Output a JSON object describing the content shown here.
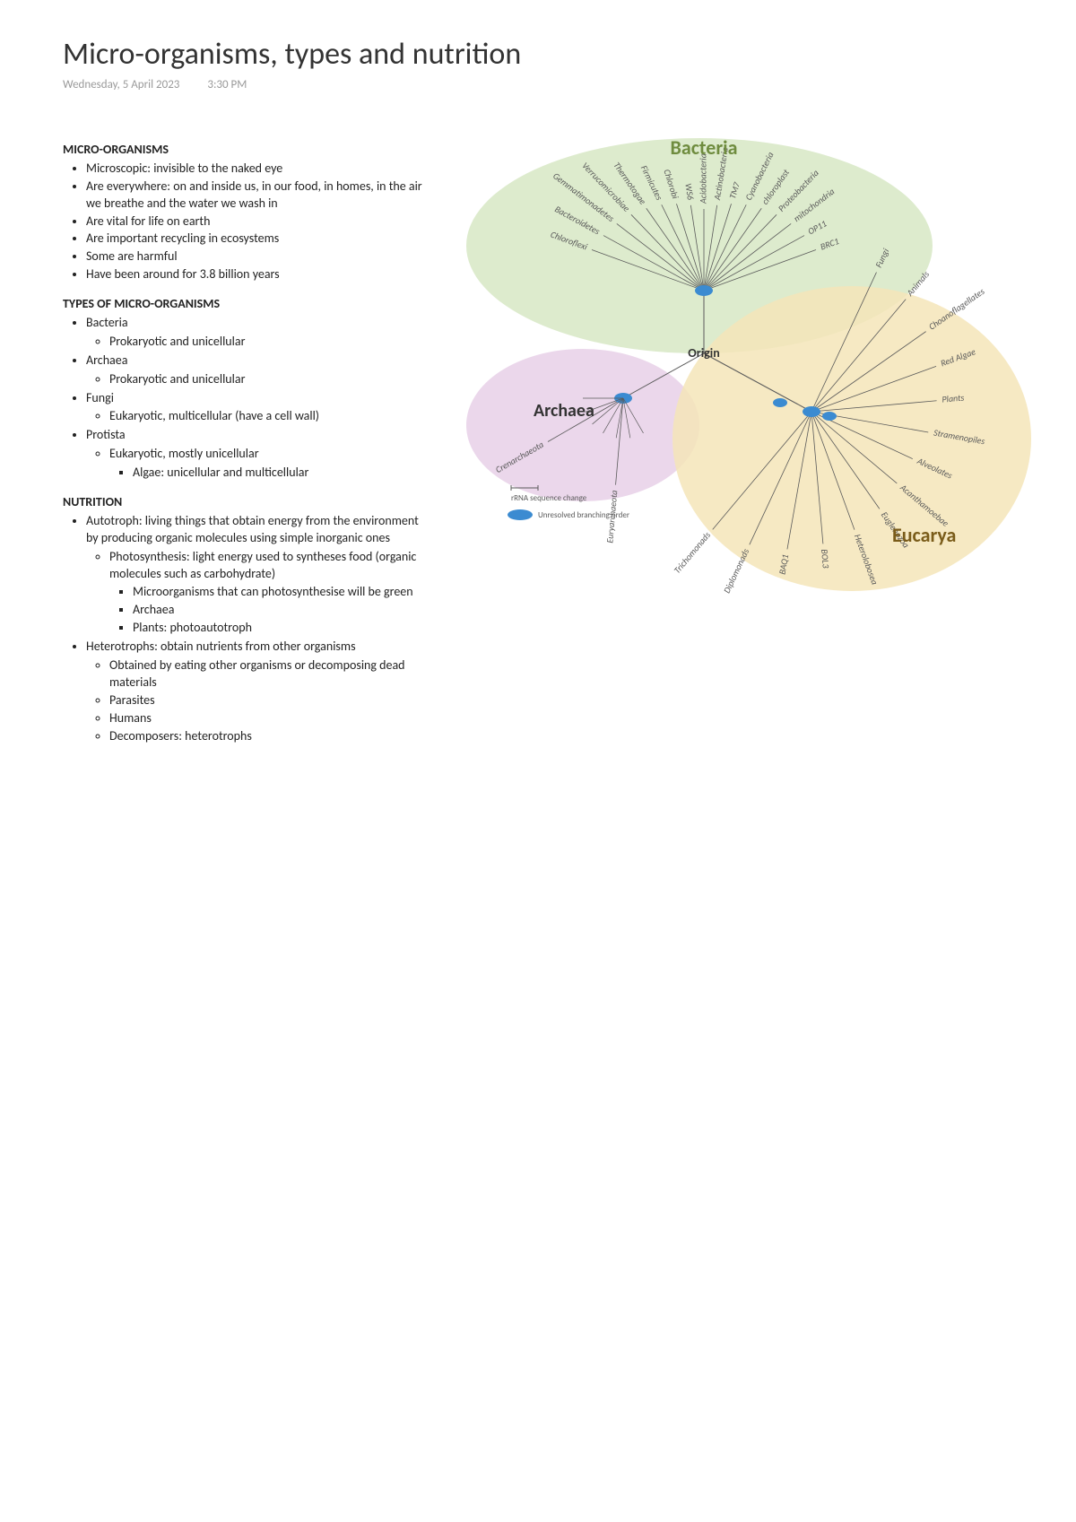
{
  "title": "Micro-organisms, types and nutrition",
  "date": "Wednesday, 5 April 2023",
  "time": "3:30 PM",
  "sections": {
    "s1": {
      "head": "MICRO-ORGANISMS",
      "items": [
        "Microscopic: invisible to the naked eye",
        "Are everywhere: on and inside us, in our food, in homes, in the air we breathe and the water we wash in",
        "Are vital for life on earth",
        "Are important recycling in ecosystems",
        "Some are harmful",
        "Have been around for 3.8 billion years"
      ]
    },
    "s2": {
      "head": "TYPES OF MICRO-ORGANISMS",
      "items": {
        "bacteria": {
          "label": "Bacteria",
          "sub": [
            "Prokaryotic and unicellular"
          ]
        },
        "archaea": {
          "label": "Archaea",
          "sub": [
            "Prokaryotic and unicellular"
          ]
        },
        "fungi": {
          "label": "Fungi",
          "sub": [
            "Eukaryotic, multicellular (have a cell wall)"
          ]
        },
        "protista": {
          "label": "Protista",
          "sub": [
            "Eukaryotic, mostly unicellular"
          ],
          "subsub": [
            "Algae: unicellular and multicellular"
          ]
        }
      }
    },
    "s3": {
      "head": "NUTRITION",
      "autotroph": {
        "label": "Autotroph: living things that obtain energy from the environment by producing organic molecules using simple inorganic ones",
        "photo": {
          "label": "Photosynthesis: light energy used to syntheses food (organic molecules such as carbohydrate)",
          "sub": [
            "Microorganisms that can photosynthesise will be green",
            "Archaea",
            "Plants: photoautotroph"
          ]
        }
      },
      "hetero": {
        "label": "Heterotrophs: obtain nutrients from other organisms",
        "sub": [
          "Obtained by eating other organisms or decomposing dead materials",
          "Parasites",
          "Humans",
          "Decomposers: heterotrophs"
        ]
      }
    }
  },
  "diagram": {
    "type": "tree",
    "origin_label": "Origin",
    "domains": {
      "bacteria": {
        "label": "Bacteria",
        "color": "#d7e7c4",
        "label_color": "#6f8c3f"
      },
      "archaea": {
        "label": "Archaea",
        "color": "#e8d0e8",
        "label_color": "#333333"
      },
      "eucarya": {
        "label": "Eucarya",
        "color": "#f5e5b8",
        "label_color": "#7a5c1a"
      }
    },
    "node_color": "#3b8bd1",
    "line_color": "#5a5a5a",
    "branches": {
      "bacteria": [
        "Chloroflexi",
        "Bacteroidetes",
        "Gemmatimonadetes",
        "Verrucomicrobiae",
        "Thermotogae",
        "Firmicutes",
        "Chlorobi",
        "WS6",
        "Acidobacteria",
        "Actinobacteria",
        "TM7",
        "Cyanobacteria",
        "chloroplast",
        "Proteobacteria",
        "mitochondria",
        "OP11",
        "BRC1"
      ],
      "archaea": [
        "Crenarchaeota",
        "Euryarchaeota"
      ],
      "eucarya": [
        "Fungi",
        "Animals",
        "Choanoflagellates",
        "Red Algae",
        "Plants",
        "Stramenopiles",
        "Alveolates",
        "Acanthamoebae",
        "Euglenozoa",
        "Heterolobosea",
        "BOL3",
        "BAQ1",
        "Diplomonads",
        "Trichomonads"
      ]
    },
    "legend": {
      "rrna": "rRNA sequence change",
      "unresolved": "Unresolved branching order"
    }
  }
}
